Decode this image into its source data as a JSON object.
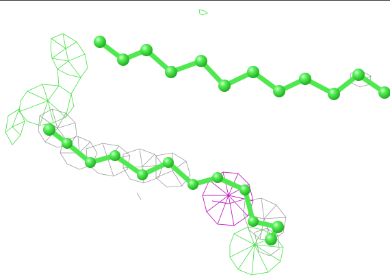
{
  "scene": {
    "background_color": "#ffffff",
    "frame_line_color": "#3a3a3a",
    "stick_color": "#4fe84f",
    "atom_color": "#39e639",
    "mesh_green_color": "#3ee03e",
    "mesh_gray_color": "#9a9a9a",
    "mesh_magenta_color": "#c21ac2",
    "objects": [
      "upper-alkyl-chain",
      "lower-alkyl-chain",
      "green-density-mesh",
      "gray-density-mesh",
      "magenta-density-mesh"
    ]
  }
}
